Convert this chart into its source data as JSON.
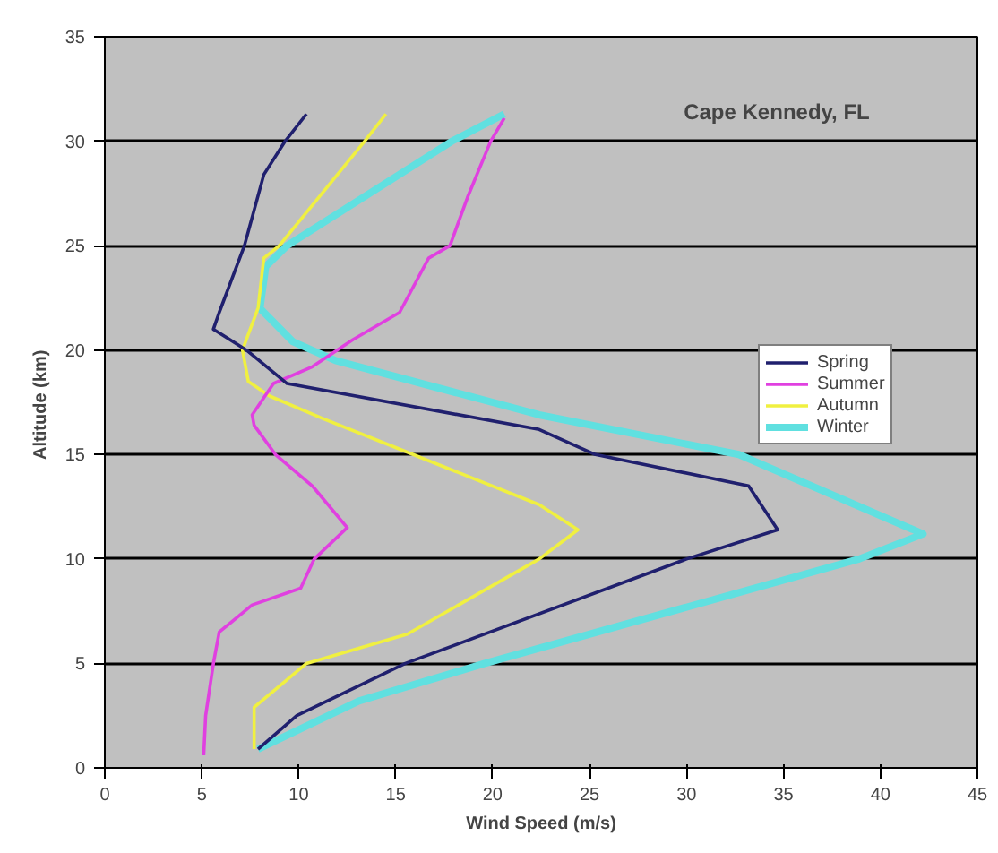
{
  "chart_data": {
    "type": "line",
    "title": "Cape Kennedy, FL",
    "xlabel": "Wind Speed (m/s)",
    "ylabel": "Altitude  (km)",
    "xlim": [
      0,
      45
    ],
    "ylim": [
      0,
      35
    ],
    "xticks": [
      0,
      5,
      10,
      15,
      20,
      25,
      30,
      35,
      40,
      45
    ],
    "yticks": [
      0,
      5,
      10,
      15,
      20,
      25,
      30,
      35
    ],
    "grid": "y",
    "legend": "right",
    "marker": "none",
    "line_style": "solid",
    "series": [
      {
        "name": "Spring",
        "color": "#20206e",
        "x": [
          7.9,
          9.9,
          15.5,
          30.0,
          34.7,
          33.2,
          25.3,
          22.4,
          9.4,
          7.3,
          5.6,
          5.9,
          7.2,
          8.2,
          9.3,
          10.4
        ],
        "values": [
          0.9,
          2.5,
          5,
          10,
          11.4,
          13.5,
          15,
          16.2,
          18.4,
          20,
          21,
          21.8,
          25,
          28.4,
          30,
          31.3
        ]
      },
      {
        "name": "Summer",
        "color": "#e040e0",
        "x": [
          5.1,
          5.2,
          5.6,
          5.9,
          7.6,
          10.1,
          10.8,
          12.5,
          10.7,
          8.8,
          7.7,
          7.6,
          8.7,
          10.7,
          12.8,
          15.2,
          16.7,
          17.8,
          18.7,
          19.9,
          20.6
        ],
        "values": [
          0.6,
          2.5,
          5,
          6.5,
          7.8,
          8.6,
          10,
          11.5,
          13.5,
          15,
          16.4,
          16.9,
          18.4,
          19.2,
          20.5,
          21.8,
          24.4,
          25,
          27.3,
          30,
          31.1
        ]
      },
      {
        "name": "Autumn",
        "color": "#f0f040",
        "x": [
          7.7,
          7.7,
          10.4,
          15.6,
          22.4,
          24.4,
          22.4,
          15.9,
          11.3,
          8.5,
          7.4,
          7.1,
          7.9,
          8.2,
          9.0,
          13.4,
          14.5
        ],
        "values": [
          0.9,
          2.9,
          5,
          6.4,
          10,
          11.4,
          12.6,
          15,
          16.7,
          17.8,
          18.5,
          20,
          22,
          24.4,
          25,
          30,
          31.3
        ]
      },
      {
        "name": "Winter",
        "color": "#60e0e0",
        "x": [
          7.9,
          13.1,
          19.6,
          38.9,
          42.2,
          32.7,
          22.4,
          11.9,
          9.7,
          8.0,
          8.3,
          9.4,
          17.9,
          20.6
        ],
        "values": [
          0.9,
          3.2,
          5,
          10,
          11.2,
          15,
          16.9,
          19.5,
          20.4,
          22,
          24,
          25,
          30,
          31.3
        ]
      }
    ]
  }
}
